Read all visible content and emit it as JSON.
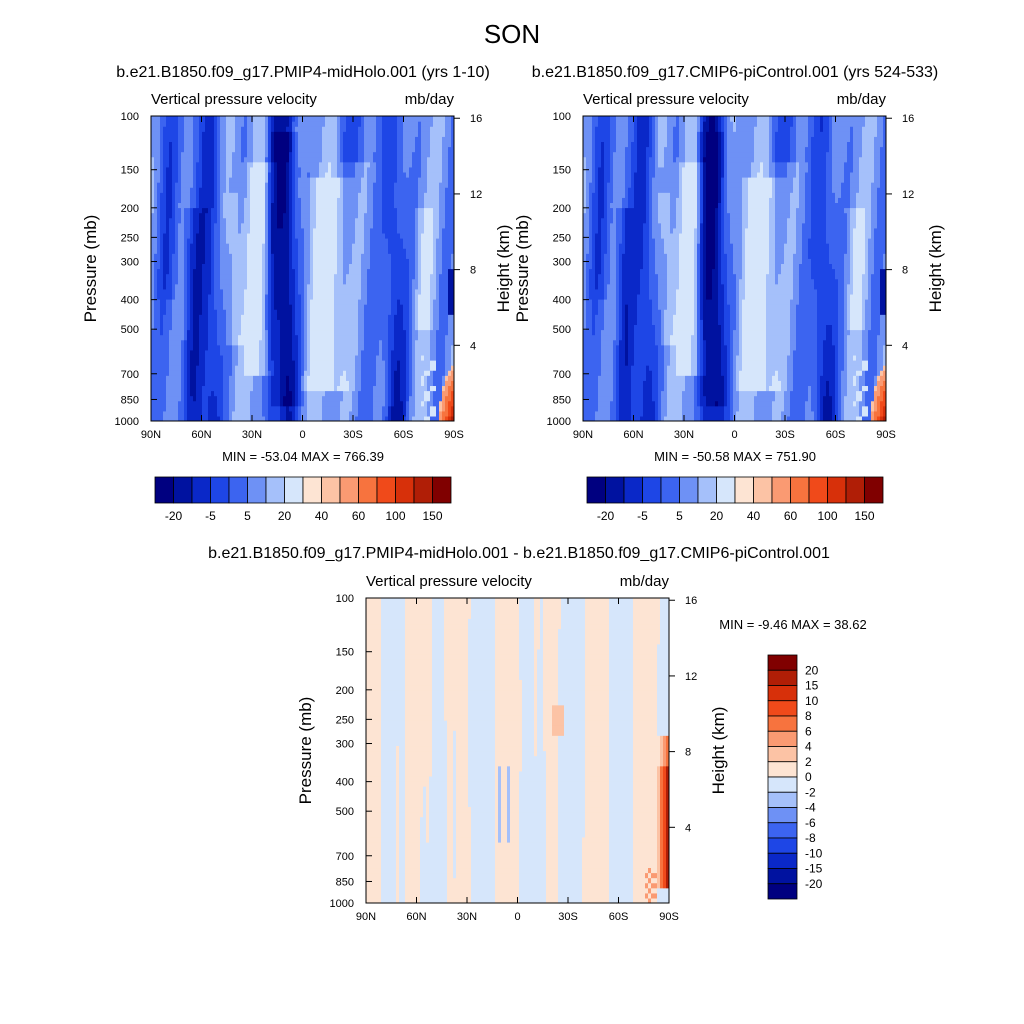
{
  "season": "SON",
  "colors": {
    "neg": [
      "#000080",
      "#0012a0",
      "#0a28c8",
      "#1e46e6",
      "#3c64f0",
      "#6e91f5",
      "#a5c0fa",
      "#d6e6fb"
    ],
    "pos": [
      "#fde4d3",
      "#fcc3a5",
      "#fa9a72",
      "#f7733e",
      "#f04a1a",
      "#d7300a",
      "#b01e06",
      "#800000"
    ]
  },
  "labels": {
    "pressure_axis": "Pressure (mb)",
    "height_axis": "Height (km)",
    "variable": "Vertical pressure velocity",
    "units": "mb/day"
  },
  "panels": [
    {
      "title": "b.e21.B1850.f09_g17.PMIP4-midHolo.001 (yrs 1-10)",
      "stats": "MIN = -53.04  MAX = 766.39"
    },
    {
      "title": "b.e21.B1850.f09_g17.CMIP6-piControl.001 (yrs 524-533)",
      "stats": "MIN = -50.58  MAX = 751.90"
    },
    {
      "title": "b.e21.B1850.f09_g17.PMIP4-midHolo.001 - b.e21.B1850.f09_g17.CMIP6-piControl.001",
      "stats": "MIN =  -9.46  MAX =  38.62"
    }
  ],
  "chart_data": [
    {
      "type": "heatmap",
      "title": "b.e21.B1850.f09_g17.PMIP4-midHolo.001 (yrs 1-10)",
      "subtitle_left": "Vertical pressure velocity",
      "subtitle_right": "mb/day",
      "xlabel": "",
      "ylabel": "Pressure (mb)",
      "ylabel_right": "Height (km)",
      "x_ticks": [
        "90N",
        "60N",
        "30N",
        "0",
        "30S",
        "60S",
        "90S"
      ],
      "y_ticks": [
        100,
        150,
        200,
        250,
        300,
        400,
        500,
        700,
        850,
        1000
      ],
      "y_right_ticks": [
        4,
        8,
        12,
        16
      ],
      "ylim": [
        1000,
        100
      ],
      "y_scale": "log",
      "min": -53.04,
      "max": 766.39,
      "colorbar_labels": [
        "-20",
        "-5",
        "5",
        "20",
        "40",
        "60",
        "100",
        "150"
      ],
      "colorbar_levels": [
        -20,
        -15,
        -10,
        -5,
        0,
        5,
        10,
        15,
        20,
        30,
        40,
        50,
        60,
        80,
        100,
        150
      ],
      "colorbar_orientation": "horizontal",
      "field_description": "predominantly negative (blue) values everywhere; strongest ascent (-20) in a narrow column near 10N, secondary strong columns near 55S, 65N and 20N; weak descent bands near 25N and 15S; positive values only near the surface at 80-88S"
    },
    {
      "type": "heatmap",
      "title": "b.e21.B1850.f09_g17.CMIP6-piControl.001 (yrs 524-533)",
      "subtitle_left": "Vertical pressure velocity",
      "subtitle_right": "mb/day",
      "xlabel": "",
      "ylabel": "Pressure (mb)",
      "ylabel_right": "Height (km)",
      "x_ticks": [
        "90N",
        "60N",
        "30N",
        "0",
        "30S",
        "60S",
        "90S"
      ],
      "y_ticks": [
        100,
        150,
        200,
        250,
        300,
        400,
        500,
        700,
        850,
        1000
      ],
      "y_right_ticks": [
        4,
        8,
        12,
        16
      ],
      "ylim": [
        1000,
        100
      ],
      "y_scale": "log",
      "min": -50.58,
      "max": 751.9,
      "colorbar_labels": [
        "-20",
        "-5",
        "5",
        "20",
        "40",
        "60",
        "100",
        "150"
      ],
      "colorbar_levels": [
        -20,
        -15,
        -10,
        -5,
        0,
        5,
        10,
        15,
        20,
        30,
        40,
        50,
        60,
        80,
        100,
        150
      ],
      "colorbar_orientation": "horizontal"
    },
    {
      "type": "heatmap",
      "title": "b.e21.B1850.f09_g17.PMIP4-midHolo.001 - b.e21.B1850.f09_g17.CMIP6-piControl.001",
      "subtitle_left": "Vertical pressure velocity",
      "subtitle_right": "mb/day",
      "xlabel": "",
      "ylabel": "Pressure (mb)",
      "ylabel_right": "Height (km)",
      "x_ticks": [
        "90N",
        "60N",
        "30N",
        "0",
        "30S",
        "60S",
        "90S"
      ],
      "y_ticks": [
        100,
        150,
        200,
        250,
        300,
        400,
        500,
        700,
        850,
        1000
      ],
      "y_right_ticks": [
        4,
        8,
        12,
        16
      ],
      "ylim": [
        1000,
        100
      ],
      "y_scale": "log",
      "min": -9.46,
      "max": 38.62,
      "colorbar_labels": [
        "20",
        "15",
        "10",
        "8",
        "6",
        "4",
        "2",
        "0",
        "-2",
        "-4",
        "-6",
        "-8",
        "-10",
        "-15",
        "-20"
      ],
      "colorbar_levels": [
        -20,
        -15,
        -10,
        -8,
        -6,
        -4,
        -2,
        0,
        2,
        4,
        6,
        8,
        10,
        15,
        20
      ],
      "colorbar_orientation": "vertical",
      "field_description": "near-zero differences (-2 to 2) everywhere as alternating pale blue/peach vertical bands; small -2 to -4 patches near 10N; larger differences (up to 20) confined to 75-90S near 600-1000 mb"
    }
  ]
}
